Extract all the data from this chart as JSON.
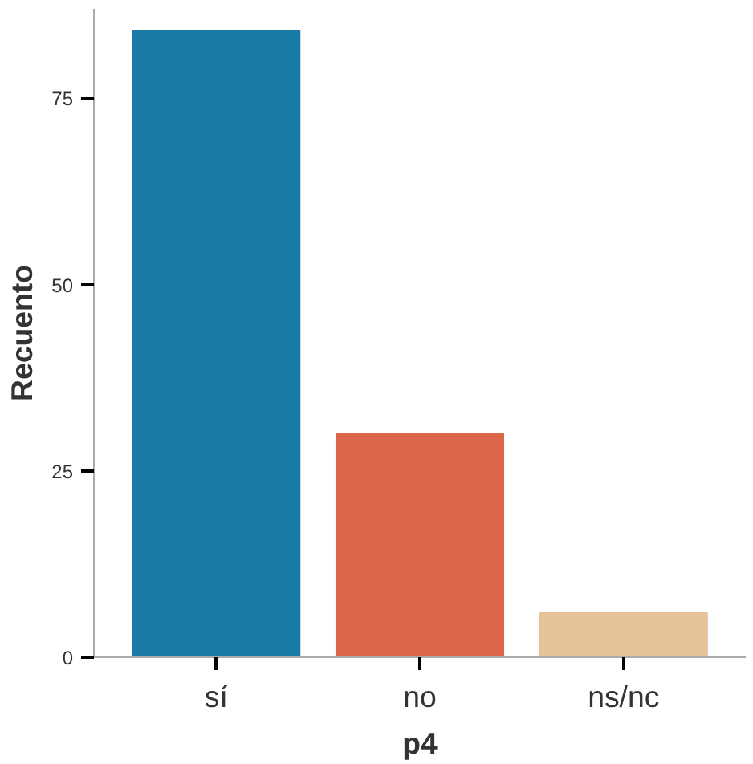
{
  "chart_data": {
    "type": "bar",
    "xlabel": "p4",
    "ylabel": "Recuento",
    "categories": [
      "sí",
      "no",
      "ns/nc"
    ],
    "values": [
      84,
      30,
      6
    ],
    "colors": [
      "#1b7ba8",
      "#dc664a",
      "#e6c298"
    ],
    "ylim": [
      0,
      87
    ],
    "yticks": [
      0,
      25,
      50,
      75
    ],
    "grid": false
  }
}
